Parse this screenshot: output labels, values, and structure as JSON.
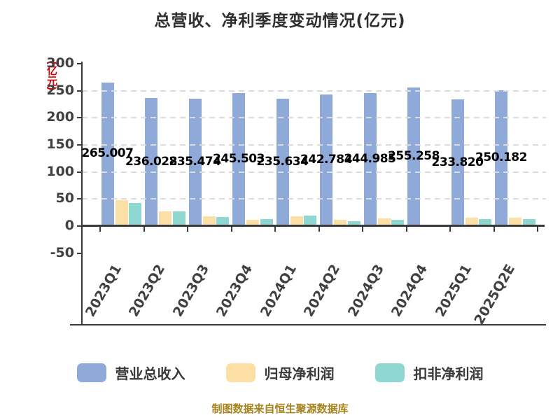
{
  "chart_data": {
    "type": "bar",
    "title": "总营收、净利季度变动情况(亿元)",
    "ylabel": "(亿元)",
    "ylabel_color": "#E00000",
    "categories": [
      "2023Q1",
      "2023Q2",
      "2023Q3",
      "2023Q4",
      "2024Q1",
      "2024Q2",
      "2024Q3",
      "2024Q4",
      "2025Q1",
      "2025Q2E"
    ],
    "series": [
      {
        "name": "营业总收入",
        "color": "#8FA9D8",
        "values": [
          265.007,
          236.028,
          235.474,
          245.503,
          235.634,
          242.784,
          244.985,
          255.258,
          233.82,
          250.182
        ],
        "labels": [
          "265.007",
          "236.028",
          "235.474",
          "245.503",
          "235.634",
          "242.784",
          "244.985",
          "255.258",
          "233.820",
          "250.182"
        ],
        "labels_shown": true
      },
      {
        "name": "归母净利润",
        "color": "#FCDFA5",
        "values": [
          48,
          27,
          18,
          11.5,
          18,
          12,
          14,
          1.5,
          16,
          16
        ],
        "labels_shown": false
      },
      {
        "name": "扣非净利润",
        "color": "#8FD8D2",
        "values": [
          42,
          27,
          17,
          12.5,
          19,
          9.5,
          12,
          1,
          13.5,
          13
        ],
        "labels_shown": false
      }
    ],
    "yticks": [
      300,
      250,
      200,
      150,
      100,
      50,
      0,
      -50
    ],
    "ylim": [
      -50,
      300
    ],
    "grid": {
      "style": "dashed",
      "color": "#DCDCDC",
      "lines_at": [
        50,
        100,
        150,
        200,
        250
      ]
    },
    "legend_position": "bottom",
    "caption": "制图数据来自恒生聚源数据库"
  }
}
